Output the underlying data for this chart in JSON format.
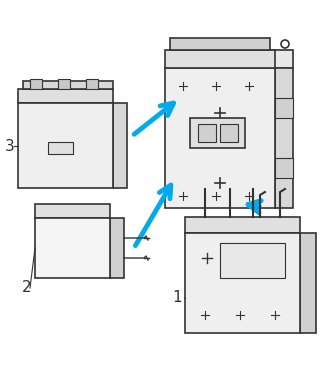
{
  "background_color": "#ffffff",
  "arrow_color": "#00aaee",
  "line_color": "#333333",
  "fill_color": "#f0f0f0",
  "label_1": "1",
  "label_2": "2",
  "label_3": "3",
  "figsize": [
    3.2,
    3.83
  ],
  "dpi": 100,
  "arrow_linewidth": 3.5,
  "component_linewidth": 1.2
}
